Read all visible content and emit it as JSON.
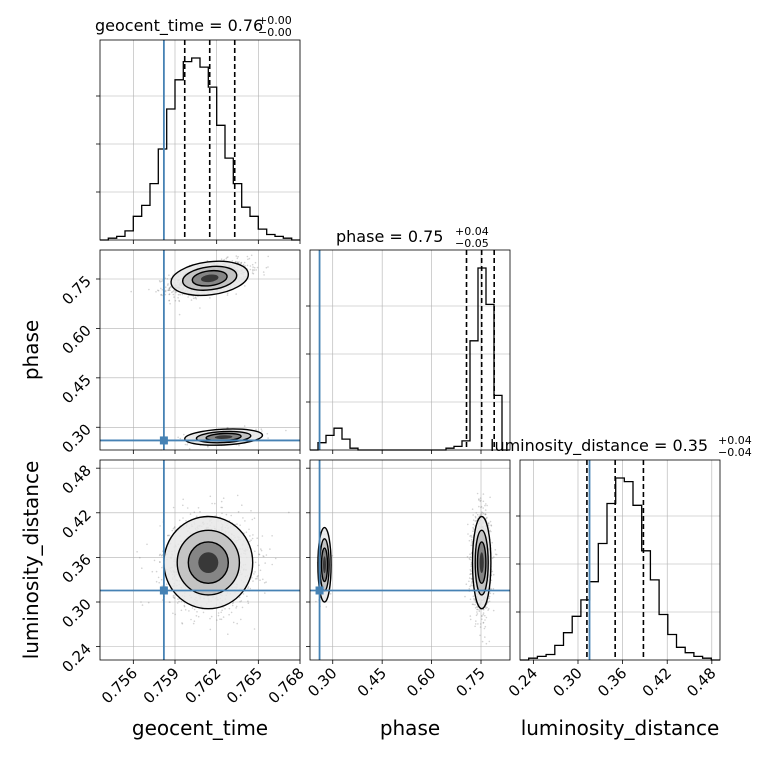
{
  "chart_data": {
    "type": "corner",
    "parameters": [
      "geocent_time",
      "phase",
      "luminosity_distance"
    ],
    "titles": {
      "geocent_time": {
        "label": "geocent_time = 0.76",
        "sup": "+0.00",
        "sub": "−0.00"
      },
      "phase": {
        "label": "phase = 0.75",
        "sup": "+0.04",
        "sub": "−0.05"
      },
      "luminosity_distance": {
        "label": "luminosity_distance = 0.35",
        "sup": "+0.04",
        "sub": "−0.04"
      }
    },
    "axis_labels": {
      "geocent_time": "geocent_time",
      "phase": "phase",
      "luminosity_distance": "luminosity_distance"
    },
    "ticks": {
      "geocent_time": {
        "values": [
          0.756,
          0.759,
          0.762,
          0.765,
          0.768
        ],
        "labels": [
          "0.756",
          "0.759",
          "0.762",
          "0.765",
          "0.768"
        ]
      },
      "phase": {
        "values": [
          0.3,
          0.45,
          0.6,
          0.75
        ],
        "labels": [
          "0.30",
          "0.45",
          "0.60",
          "0.75"
        ]
      },
      "luminosity_distance": {
        "values": [
          0.24,
          0.3,
          0.36,
          0.42,
          0.48
        ],
        "labels": [
          "0.24",
          "0.30",
          "0.36",
          "0.42",
          "0.48"
        ]
      }
    },
    "ranges": {
      "geocent_time": [
        0.7536,
        0.768
      ],
      "phase": [
        0.231,
        0.838
      ],
      "luminosity_distance": [
        0.222,
        0.491
      ]
    },
    "truth": {
      "geocent_time": 0.7582,
      "phase": 0.26,
      "luminosity_distance": 0.3155
    },
    "quantiles": {
      "geocent_time": [
        0.7597,
        0.7615,
        0.7633
      ],
      "phase": [
        0.706,
        0.752,
        0.79
      ],
      "luminosity_distance": [
        0.312,
        0.35,
        0.388
      ]
    },
    "hist_1d": {
      "geocent_time": {
        "edges_range": [
          0.7536,
          0.768
        ],
        "counts": [
          0,
          0.01,
          0.02,
          0.05,
          0.13,
          0.19,
          0.31,
          0.5,
          0.72,
          0.88,
          0.98,
          1.0,
          0.95,
          0.84,
          0.63,
          0.45,
          0.31,
          0.18,
          0.13,
          0.06,
          0.03,
          0.02,
          0.01,
          0.0
        ]
      },
      "phase": {
        "edges_range": [
          0.231,
          0.838
        ],
        "counts": [
          0.0,
          0.04,
          0.08,
          0.12,
          0.06,
          0.01,
          0.0,
          0.0,
          0.0,
          0.0,
          0.0,
          0.0,
          0.0,
          0.0,
          0.0,
          0.0,
          0.0,
          0.01,
          0.02,
          0.05,
          0.6,
          1.0,
          0.8,
          0.3,
          0.0
        ]
      },
      "luminosity_distance": {
        "edges_range": [
          0.222,
          0.491
        ],
        "counts": [
          0.0,
          0.01,
          0.02,
          0.03,
          0.08,
          0.15,
          0.24,
          0.33,
          0.43,
          0.64,
          0.86,
          1.0,
          0.98,
          0.85,
          0.6,
          0.44,
          0.25,
          0.14,
          0.07,
          0.04,
          0.02,
          0.01,
          0.0
        ]
      }
    },
    "modes_2d": {
      "phase_vs_geocent_time": [
        {
          "center": [
            0.7615,
            0.752
          ],
          "sigma": [
            0.0014,
            0.025
          ],
          "corr": 0.5,
          "weight": 0.88
        },
        {
          "center": [
            0.7625,
            0.27
          ],
          "sigma": [
            0.0014,
            0.012
          ],
          "corr": 0.4,
          "weight": 0.12
        }
      ],
      "luminosity_distance_vs_geocent_time": [
        {
          "center": [
            0.7614,
            0.353
          ],
          "sigma": [
            0.0016,
            0.031
          ],
          "corr": 0.0,
          "weight": 1.0
        }
      ],
      "luminosity_distance_vs_phase": [
        {
          "center": [
            0.752,
            0.353
          ],
          "sigma": [
            0.014,
            0.031
          ],
          "corr": 0.0,
          "weight": 0.9
        },
        {
          "center": [
            0.275,
            0.35
          ],
          "sigma": [
            0.01,
            0.025
          ],
          "corr": 0.0,
          "weight": 0.1
        }
      ]
    },
    "colors": {
      "truth": "#4682b4",
      "line": "#000000",
      "grid": "#b0b0b0",
      "samples": "#7f7f7f"
    },
    "grid": true
  }
}
